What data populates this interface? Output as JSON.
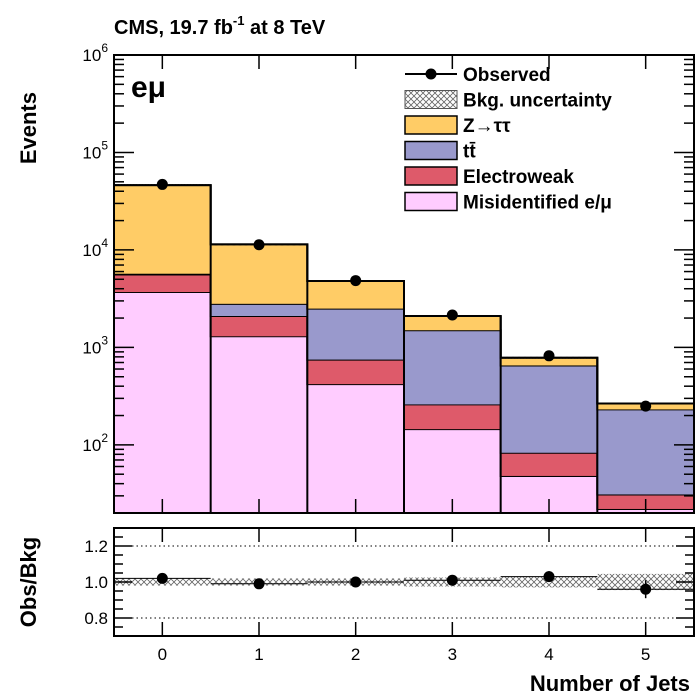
{
  "chart_data": [
    {
      "type": "stacked-histogram",
      "title": "CMS, 19.7 fb",
      "title_sup": "-1",
      "title_rest": " at 8 TeV",
      "channel_label": "eμ",
      "ylabel": "Events",
      "yscale": "log",
      "ylim": [
        20,
        1000000
      ],
      "y_ticks": [
        {
          "value": 100,
          "base": "10",
          "exp": "2"
        },
        {
          "value": 1000,
          "base": "10",
          "exp": "3"
        },
        {
          "value": 10000,
          "base": "10",
          "exp": "4"
        },
        {
          "value": 100000,
          "base": "10",
          "exp": "5"
        },
        {
          "value": 1000000,
          "base": "10",
          "exp": "6"
        }
      ],
      "bins": [
        0,
        1,
        2,
        3,
        4,
        5
      ],
      "legend_position": "top-right",
      "stack": [
        {
          "name": "Misidentified e/μ",
          "color": "#ffccff",
          "values": [
            3700,
            1300,
            420,
            145,
            48,
            22
          ]
        },
        {
          "name": "Electroweak",
          "color": "#de5a6a",
          "values": [
            1900,
            800,
            330,
            115,
            35,
            9
          ]
        },
        {
          "name": "tt̄",
          "color": "#9999cc",
          "values": [
            100,
            700,
            1750,
            1240,
            570,
            200
          ]
        },
        {
          "name": "Z→ττ",
          "color": "#ffcc66",
          "values": [
            40500,
            8600,
            2300,
            600,
            130,
            35
          ]
        }
      ],
      "observed": {
        "name": "Observed",
        "values": [
          47000,
          11300,
          4850,
          2150,
          820,
          250
        ]
      },
      "uncertainty": {
        "name": "Bkg. uncertainty"
      }
    },
    {
      "type": "ratio",
      "ylabel": "Obs/Bkg",
      "xlabel": "Number of Jets",
      "ylim": [
        0.7,
        1.3
      ],
      "y_ticks": [
        "0.8",
        "1.0",
        "1.2"
      ],
      "x_ticks": [
        "0",
        "1",
        "2",
        "3",
        "4",
        "5"
      ],
      "ratio": [
        1.02,
        0.99,
        1.0,
        1.01,
        1.03,
        0.96
      ],
      "ratio_err": [
        0.005,
        0.007,
        0.012,
        0.02,
        0.03,
        0.05
      ],
      "band_halfwidth": [
        0.02,
        0.02,
        0.02,
        0.025,
        0.03,
        0.045
      ],
      "gridlines": [
        0.8,
        1.0,
        1.2
      ]
    }
  ]
}
